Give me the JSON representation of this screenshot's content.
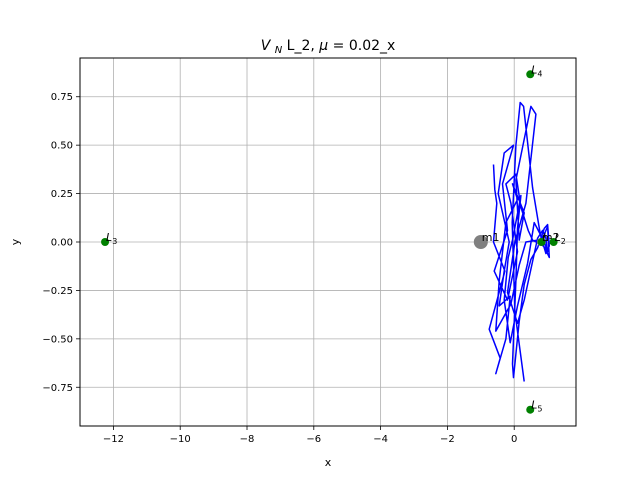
{
  "chart_data": {
    "type": "line",
    "title_main": "V",
    "title_sub": "N",
    "title_rest": " L_2, ",
    "title_mu": "μ",
    "title_eq": " = 0.02_x",
    "xlabel": "x",
    "ylabel": "y",
    "xlim": [
      -13.0,
      1.85
    ],
    "ylim": [
      -0.95,
      0.95
    ],
    "xticks": [
      -12,
      -10,
      -8,
      -6,
      -4,
      -2,
      0
    ],
    "xtick_labels": [
      "−12",
      "−10",
      "−8",
      "−6",
      "−4",
      "−2",
      "0"
    ],
    "yticks": [
      -0.75,
      -0.5,
      -0.25,
      0.0,
      0.25,
      0.5,
      0.75
    ],
    "ytick_labels": [
      "−0.75",
      "−0.50",
      "−0.25",
      "0.00",
      "0.25",
      "0.50",
      "0.75"
    ],
    "grid": true,
    "colors": {
      "trajectory": "#0000ff",
      "lagrange_point": "#008000",
      "primary_mass": "#808080",
      "grid": "#b0b0b0"
    },
    "lagrange_points": [
      {
        "label": "L",
        "sub": "1",
        "x": 0.82,
        "y": 0.0
      },
      {
        "label": "L",
        "sub": "2",
        "x": 1.18,
        "y": 0.0
      },
      {
        "label": "L",
        "sub": "3",
        "x": -12.25,
        "y": 0.0
      },
      {
        "label": "L",
        "sub": "4",
        "x": 0.48,
        "y": 0.866
      },
      {
        "label": "L",
        "sub": "5",
        "x": 0.48,
        "y": -0.866
      }
    ],
    "masses": [
      {
        "label": "m1",
        "x": -1.0,
        "y": 0.0
      },
      {
        "label": "m2",
        "x": 0.8,
        "y": 0.0
      }
    ],
    "trajectory": {
      "x": [
        -0.62,
        -0.58,
        -0.52,
        -0.62,
        -0.28,
        -0.75,
        -0.42,
        -0.55,
        -0.25,
        -0.12,
        -0.45,
        -0.3,
        -0.15,
        -0.48,
        -0.3,
        -0.02,
        -0.35,
        -0.2,
        -0.6,
        -0.2,
        0.1,
        -0.1,
        -0.25,
        0.05,
        0.2,
        0.42,
        0.55,
        0.75,
        0.9,
        1.0,
        1.05,
        0.92,
        0.7,
        0.35,
        0.15,
        -0.1,
        -0.55,
        -0.45,
        -0.25,
        0.1,
        -0.05,
        0.3,
        0.15,
        0.05,
        0.5,
        0.65,
        0.35,
        0.02,
        -0.2,
        0.1,
        0.3,
        0.55,
        0.7,
        0.85,
        0.95,
        1.0,
        0.9,
        0.6,
        0.4,
        0.1,
        -0.12,
        -0.3,
        -0.18,
        -0.05,
        0.2,
        0.1,
        0.05,
        -0.05,
        -0.02,
        0.15,
        0.3,
        0.5,
        0.7,
        0.9,
        1.0,
        1.05,
        0.95,
        0.78,
        0.55,
        0.28,
        0.18,
        0.05,
        -0.06,
        0.02,
        0.3
      ],
      "y": [
        0.4,
        0.27,
        0.2,
        0.0,
        -0.15,
        -0.45,
        -0.6,
        -0.68,
        -0.5,
        -0.28,
        -0.33,
        -0.15,
        0.0,
        0.25,
        0.46,
        0.5,
        0.3,
        0.06,
        -0.15,
        -0.3,
        -0.05,
        0.2,
        0.3,
        0.35,
        0.18,
        0.06,
        0.01,
        -0.01,
        0.04,
        0.08,
        -0.08,
        -0.03,
        0.01,
        0.0,
        -0.12,
        -0.32,
        -0.46,
        -0.2,
        0.1,
        0.22,
        0.3,
        0.15,
        0.01,
        0.32,
        0.7,
        0.66,
        0.2,
        0.0,
        -0.26,
        -0.42,
        -0.3,
        -0.1,
        0.02,
        0.06,
        0.02,
        -0.05,
        0.0,
        0.1,
        -0.11,
        -0.33,
        -0.52,
        -0.3,
        -0.08,
        0.01,
        0.24,
        0.07,
        -0.2,
        -0.63,
        -0.7,
        -0.41,
        -0.22,
        -0.09,
        -0.03,
        0.07,
        0.09,
        -0.02,
        -0.06,
        0.04,
        0.28,
        0.7,
        0.72,
        0.5,
        0.1,
        -0.36,
        -0.72
      ]
    }
  }
}
